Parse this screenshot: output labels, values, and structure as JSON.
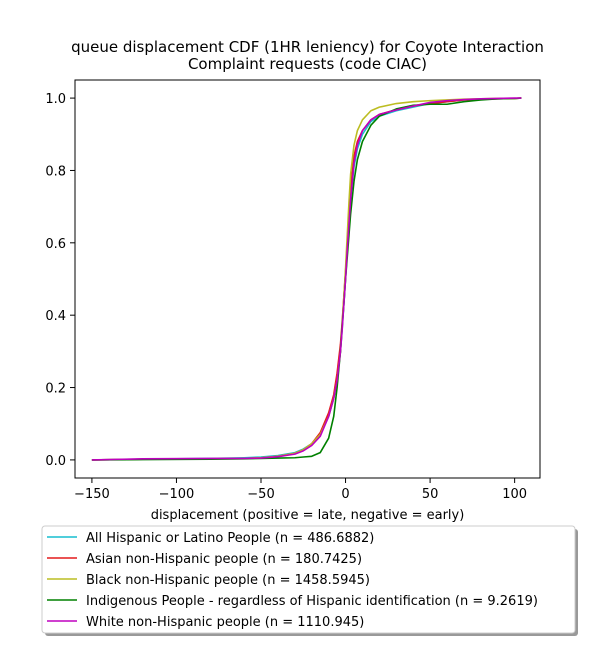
{
  "chart_data": {
    "type": "line",
    "title_lines": [
      "queue displacement CDF (1HR leniency) for Coyote Interaction",
      "Complaint  requests (code CIAC)"
    ],
    "xlabel": "displacement (positive = late, negative = early)",
    "ylabel": "",
    "xlim": [
      -160,
      115
    ],
    "ylim": [
      -0.05,
      1.05
    ],
    "xticks": [
      -150,
      -100,
      -50,
      0,
      50,
      100
    ],
    "xtick_labels": [
      "−150",
      "−100",
      "−50",
      "0",
      "50",
      "100"
    ],
    "yticks": [
      0.0,
      0.2,
      0.4,
      0.6,
      0.8,
      1.0
    ],
    "ytick_labels": [
      "0.0",
      "0.2",
      "0.4",
      "0.6",
      "0.8",
      "1.0"
    ],
    "grid": false,
    "legend_position": "bottom-center, below axes",
    "series": [
      {
        "name": "All Hispanic or Latino People (n = 486.6882)",
        "color": "#17becf",
        "x": [
          -150,
          -120,
          -80,
          -60,
          -50,
          -40,
          -30,
          -25,
          -20,
          -15,
          -10,
          -7,
          -5,
          -3,
          -2,
          -1,
          0,
          1,
          2,
          3,
          5,
          7,
          10,
          15,
          20,
          30,
          40,
          50,
          60,
          70,
          80,
          90,
          100,
          104
        ],
        "y": [
          0.0,
          0.002,
          0.004,
          0.006,
          0.008,
          0.012,
          0.02,
          0.03,
          0.045,
          0.07,
          0.12,
          0.17,
          0.22,
          0.3,
          0.36,
          0.43,
          0.5,
          0.58,
          0.65,
          0.72,
          0.81,
          0.86,
          0.9,
          0.935,
          0.95,
          0.965,
          0.975,
          0.985,
          0.99,
          0.995,
          0.997,
          0.998,
          0.999,
          1.0
        ]
      },
      {
        "name": "Asian non-Hispanic people (n = 180.7425)",
        "color": "#e41a1c",
        "x": [
          -150,
          -120,
          -80,
          -60,
          -50,
          -40,
          -30,
          -25,
          -20,
          -15,
          -10,
          -7,
          -5,
          -3,
          -2,
          -1,
          0,
          1,
          2,
          3,
          5,
          7,
          10,
          15,
          20,
          30,
          40,
          50,
          60,
          70,
          80,
          90,
          100,
          104
        ],
        "y": [
          0.0,
          0.002,
          0.003,
          0.004,
          0.006,
          0.01,
          0.018,
          0.028,
          0.045,
          0.075,
          0.13,
          0.18,
          0.24,
          0.32,
          0.38,
          0.45,
          0.52,
          0.6,
          0.68,
          0.75,
          0.84,
          0.88,
          0.91,
          0.94,
          0.955,
          0.968,
          0.978,
          0.985,
          0.99,
          0.995,
          0.997,
          0.998,
          0.999,
          1.0
        ]
      },
      {
        "name": "Black non-Hispanic people (n = 1458.5945)",
        "color": "#bcbd22",
        "x": [
          -150,
          -120,
          -80,
          -60,
          -50,
          -40,
          -30,
          -25,
          -20,
          -15,
          -10,
          -7,
          -5,
          -3,
          -2,
          -1,
          0,
          1,
          2,
          3,
          5,
          7,
          10,
          15,
          20,
          30,
          40,
          50,
          60,
          70,
          80,
          90,
          100,
          104
        ],
        "y": [
          0.0,
          0.002,
          0.003,
          0.004,
          0.006,
          0.01,
          0.018,
          0.028,
          0.045,
          0.07,
          0.12,
          0.17,
          0.22,
          0.3,
          0.37,
          0.45,
          0.53,
          0.62,
          0.71,
          0.79,
          0.87,
          0.91,
          0.94,
          0.965,
          0.975,
          0.985,
          0.99,
          0.993,
          0.995,
          0.997,
          0.998,
          0.999,
          0.999,
          1.0
        ]
      },
      {
        "name": "Indigenous People - regardless of Hispanic identification (n = 9.2619)",
        "color": "#008000",
        "x": [
          -150,
          -120,
          -80,
          -60,
          -50,
          -40,
          -30,
          -25,
          -20,
          -15,
          -10,
          -7,
          -5,
          -3,
          -2,
          -1,
          0,
          1,
          2,
          3,
          5,
          7,
          10,
          15,
          20,
          30,
          40,
          50,
          60,
          70,
          80,
          90,
          100,
          104
        ],
        "y": [
          0.0,
          0.001,
          0.002,
          0.003,
          0.004,
          0.005,
          0.006,
          0.008,
          0.01,
          0.02,
          0.06,
          0.12,
          0.2,
          0.3,
          0.37,
          0.43,
          0.5,
          0.56,
          0.62,
          0.68,
          0.77,
          0.83,
          0.88,
          0.925,
          0.95,
          0.97,
          0.98,
          0.983,
          0.983,
          0.99,
          0.995,
          0.998,
          0.999,
          1.0
        ]
      },
      {
        "name": "White non-Hispanic people (n = 1110.945)",
        "color": "#bf00bf",
        "x": [
          -150,
          -120,
          -80,
          -60,
          -50,
          -40,
          -30,
          -25,
          -20,
          -15,
          -10,
          -7,
          -5,
          -3,
          -2,
          -1,
          0,
          1,
          2,
          3,
          5,
          7,
          10,
          15,
          20,
          30,
          40,
          50,
          60,
          70,
          80,
          90,
          100,
          104
        ],
        "y": [
          0.0,
          0.003,
          0.004,
          0.004,
          0.005,
          0.009,
          0.016,
          0.025,
          0.04,
          0.065,
          0.12,
          0.17,
          0.22,
          0.3,
          0.36,
          0.43,
          0.5,
          0.58,
          0.65,
          0.72,
          0.82,
          0.87,
          0.91,
          0.94,
          0.955,
          0.967,
          0.978,
          0.988,
          0.993,
          0.996,
          0.998,
          0.999,
          1.0,
          1.0
        ]
      }
    ]
  }
}
